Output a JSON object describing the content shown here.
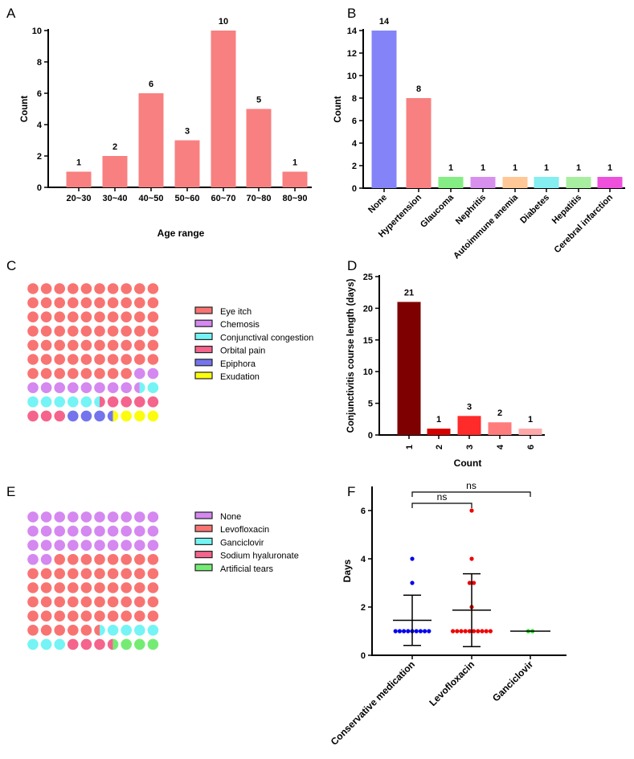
{
  "chart_data": [
    {
      "panel": "A",
      "type": "bar",
      "xlabel": "Age range",
      "ylabel": "Count",
      "ylim": [
        0,
        10
      ],
      "yticks": [
        0,
        2,
        4,
        6,
        8,
        10
      ],
      "categories": [
        "20~30",
        "30~40",
        "40~50",
        "50~60",
        "60~70",
        "70~80",
        "80~90"
      ],
      "values": [
        1,
        2,
        6,
        3,
        10,
        5,
        1
      ],
      "colors": [
        "#f88080",
        "#f88080",
        "#f88080",
        "#f88080",
        "#f88080",
        "#f88080",
        "#f88080"
      ]
    },
    {
      "panel": "B",
      "type": "bar",
      "xlabel": "",
      "ylabel": "Count",
      "ylim": [
        0,
        14
      ],
      "yticks": [
        0,
        2,
        4,
        6,
        8,
        10,
        12,
        14
      ],
      "categories": [
        "None",
        "Hypertension",
        "Glaucoma",
        "Nephritis",
        "Autoimmune anemia",
        "Diabetes",
        "Hepatitis",
        "Cerebral infarction"
      ],
      "values": [
        14,
        8,
        1,
        1,
        1,
        1,
        1,
        1
      ],
      "colors": [
        "#8484f8",
        "#f88080",
        "#84ee84",
        "#d890ee",
        "#ffc896",
        "#84eef0",
        "#a8eea0",
        "#ee50dc"
      ]
    },
    {
      "panel": "C",
      "type": "waffle",
      "legend": [
        "Eye itch",
        "Chemosis",
        "Conjunctival congestion",
        "Orbital pain",
        "Epiphora",
        "Exudation"
      ],
      "values": [
        68,
        10.5,
        7,
        7.5,
        3.5,
        3.5
      ],
      "colors": [
        "#f87472",
        "#d488f0",
        "#74f4f4",
        "#f4648c",
        "#7474ec",
        "#fcfc10"
      ]
    },
    {
      "panel": "D",
      "type": "bar",
      "xlabel": "Count",
      "ylabel": "Conjunctivitis course length (days)",
      "ylim": [
        0,
        25
      ],
      "yticks": [
        0,
        5,
        10,
        15,
        20,
        25
      ],
      "categories": [
        "1",
        "2",
        "3",
        "4",
        "6"
      ],
      "values": [
        21,
        1,
        3,
        2,
        1
      ],
      "colors": [
        "#7e0000",
        "#d40000",
        "#ff2a2a",
        "#ff7c7c",
        "#ffa8a8"
      ]
    },
    {
      "panel": "E",
      "type": "waffle",
      "legend": [
        "None",
        "Levofloxacin",
        "Ganciclovir",
        "Sodium hyaluronate",
        "Artificial tears"
      ],
      "values": [
        32,
        53.5,
        7.5,
        3.5,
        3.5
      ],
      "colors": [
        "#d488f0",
        "#f87472",
        "#74f4f4",
        "#f4648c",
        "#74ec74"
      ]
    },
    {
      "panel": "F",
      "type": "scatter",
      "ylabel": "Days",
      "ylim": [
        0,
        7
      ],
      "yticks": [
        0,
        2,
        4,
        6
      ],
      "categories": [
        "Conservative medication",
        "Levofloxacin",
        "Ganciclovir"
      ],
      "series": [
        {
          "name": "Conservative medication",
          "values": [
            1,
            1,
            1,
            1,
            1,
            1,
            1,
            1,
            1,
            3,
            4
          ],
          "mean": 1.45,
          "sd": 1.04,
          "color": "#0000ee"
        },
        {
          "name": "Levofloxacin",
          "values": [
            1,
            1,
            1,
            1,
            1,
            1,
            1,
            1,
            1,
            1,
            2,
            3,
            3,
            4,
            6
          ],
          "mean": 1.87,
          "sd": 1.51,
          "color": "#ee0000"
        },
        {
          "name": "Ganciclovir",
          "values": [
            1,
            1
          ],
          "mean": 1.0,
          "sd": 0,
          "color": "#22dd22"
        }
      ],
      "comparisons": [
        {
          "groups": [
            0,
            1
          ],
          "label": "ns"
        },
        {
          "groups": [
            0,
            2
          ],
          "label": "ns"
        }
      ]
    }
  ]
}
